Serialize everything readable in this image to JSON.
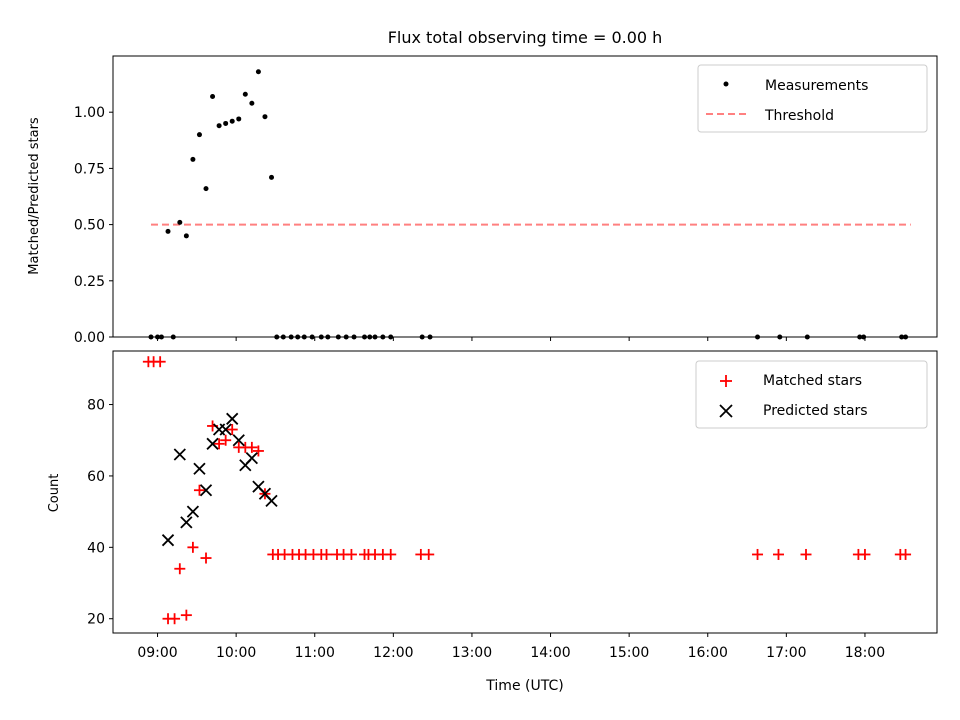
{
  "chart_data": [
    {
      "type": "scatter",
      "title": "Flux total observing time = 0.00 h",
      "xlabel": "",
      "ylabel": "Matched/Predicted stars",
      "xlim": [
        "08:26",
        "18:55"
      ],
      "ylim": [
        0.0,
        1.25
      ],
      "yticks": [
        "0.00",
        "0.25",
        "0.50",
        "0.75",
        "1.00"
      ],
      "grid": false,
      "legend_position": "top-right",
      "legend": [
        "Measurements",
        "Threshold"
      ],
      "threshold": {
        "name": "Threshold",
        "y": 0.5,
        "x_range": [
          "08:55",
          "18:35"
        ],
        "color": "#ff8080"
      },
      "series": [
        {
          "name": "Measurements",
          "color": "#000000",
          "points": [
            [
              "08:55",
              0.0
            ],
            [
              "09:00",
              0.0
            ],
            [
              "09:03",
              0.0
            ],
            [
              "09:08",
              0.47
            ],
            [
              "09:12",
              0.0
            ],
            [
              "09:17",
              0.51
            ],
            [
              "09:22",
              0.45
            ],
            [
              "09:27",
              0.79
            ],
            [
              "09:32",
              0.9
            ],
            [
              "09:37",
              0.66
            ],
            [
              "09:42",
              1.07
            ],
            [
              "09:47",
              0.94
            ],
            [
              "09:52",
              0.95
            ],
            [
              "09:57",
              0.96
            ],
            [
              "10:02",
              0.97
            ],
            [
              "10:07",
              1.08
            ],
            [
              "10:12",
              1.04
            ],
            [
              "10:17",
              1.18
            ],
            [
              "10:22",
              0.98
            ],
            [
              "10:27",
              0.71
            ],
            [
              "10:31",
              0.0
            ],
            [
              "10:36",
              0.0
            ],
            [
              "10:42",
              0.0
            ],
            [
              "10:47",
              0.0
            ],
            [
              "10:52",
              0.0
            ],
            [
              "10:58",
              0.0
            ],
            [
              "11:05",
              0.0
            ],
            [
              "11:10",
              0.0
            ],
            [
              "11:18",
              0.0
            ],
            [
              "11:24",
              0.0
            ],
            [
              "11:30",
              0.0
            ],
            [
              "11:38",
              0.0
            ],
            [
              "11:42",
              0.0
            ],
            [
              "11:46",
              0.0
            ],
            [
              "11:52",
              0.0
            ],
            [
              "11:58",
              0.0
            ],
            [
              "12:22",
              0.0
            ],
            [
              "12:28",
              0.0
            ],
            [
              "16:38",
              0.0
            ],
            [
              "16:55",
              0.0
            ],
            [
              "17:16",
              0.0
            ],
            [
              "17:56",
              0.0
            ],
            [
              "17:59",
              0.0
            ],
            [
              "18:28",
              0.0
            ],
            [
              "18:31",
              0.0
            ]
          ]
        }
      ]
    },
    {
      "type": "scatter",
      "xlabel": "Time (UTC)",
      "ylabel": "Count",
      "xlim": [
        "08:26",
        "18:55"
      ],
      "ylim": [
        16,
        95
      ],
      "xticks": [
        "09:00",
        "10:00",
        "11:00",
        "12:00",
        "13:00",
        "14:00",
        "15:00",
        "16:00",
        "17:00",
        "18:00"
      ],
      "yticks": [
        "20",
        "40",
        "60",
        "80"
      ],
      "grid": false,
      "legend_position": "top-right",
      "legend": [
        "Matched stars",
        "Predicted stars"
      ],
      "series": [
        {
          "name": "Matched stars",
          "marker": "+",
          "color": "#ff0000",
          "points": [
            [
              "08:53",
              92
            ],
            [
              "08:57",
              92
            ],
            [
              "09:02",
              92
            ],
            [
              "09:08",
              20
            ],
            [
              "09:13",
              20
            ],
            [
              "09:17",
              34
            ],
            [
              "09:22",
              21
            ],
            [
              "09:27",
              40
            ],
            [
              "09:32",
              56
            ],
            [
              "09:37",
              37
            ],
            [
              "09:42",
              74
            ],
            [
              "09:47",
              69
            ],
            [
              "09:52",
              70
            ],
            [
              "09:57",
              73
            ],
            [
              "10:02",
              68
            ],
            [
              "10:07",
              68
            ],
            [
              "10:12",
              68
            ],
            [
              "10:17",
              67
            ],
            [
              "10:22",
              55
            ],
            [
              "10:28",
              38
            ],
            [
              "10:32",
              38
            ],
            [
              "10:37",
              38
            ],
            [
              "10:43",
              38
            ],
            [
              "10:48",
              38
            ],
            [
              "10:53",
              38
            ],
            [
              "10:59",
              38
            ],
            [
              "11:05",
              38
            ],
            [
              "11:09",
              38
            ],
            [
              "11:17",
              38
            ],
            [
              "11:22",
              38
            ],
            [
              "11:28",
              38
            ],
            [
              "11:38",
              38
            ],
            [
              "11:41",
              38
            ],
            [
              "11:46",
              38
            ],
            [
              "11:52",
              38
            ],
            [
              "11:58",
              38
            ],
            [
              "12:21",
              38
            ],
            [
              "12:27",
              38
            ],
            [
              "16:38",
              38
            ],
            [
              "16:54",
              38
            ],
            [
              "17:15",
              38
            ],
            [
              "17:55",
              38
            ],
            [
              "18:00",
              38
            ],
            [
              "18:27",
              38
            ],
            [
              "18:31",
              38
            ]
          ]
        },
        {
          "name": "Predicted stars",
          "marker": "x",
          "color": "#000000",
          "points": [
            [
              "09:08",
              42
            ],
            [
              "09:17",
              66
            ],
            [
              "09:22",
              47
            ],
            [
              "09:27",
              50
            ],
            [
              "09:32",
              62
            ],
            [
              "09:37",
              56
            ],
            [
              "09:42",
              69
            ],
            [
              "09:47",
              73
            ],
            [
              "09:52",
              73
            ],
            [
              "09:57",
              76
            ],
            [
              "10:02",
              70
            ],
            [
              "10:07",
              63
            ],
            [
              "10:12",
              65
            ],
            [
              "10:17",
              57
            ],
            [
              "10:22",
              55
            ],
            [
              "10:27",
              53
            ]
          ]
        }
      ]
    }
  ]
}
